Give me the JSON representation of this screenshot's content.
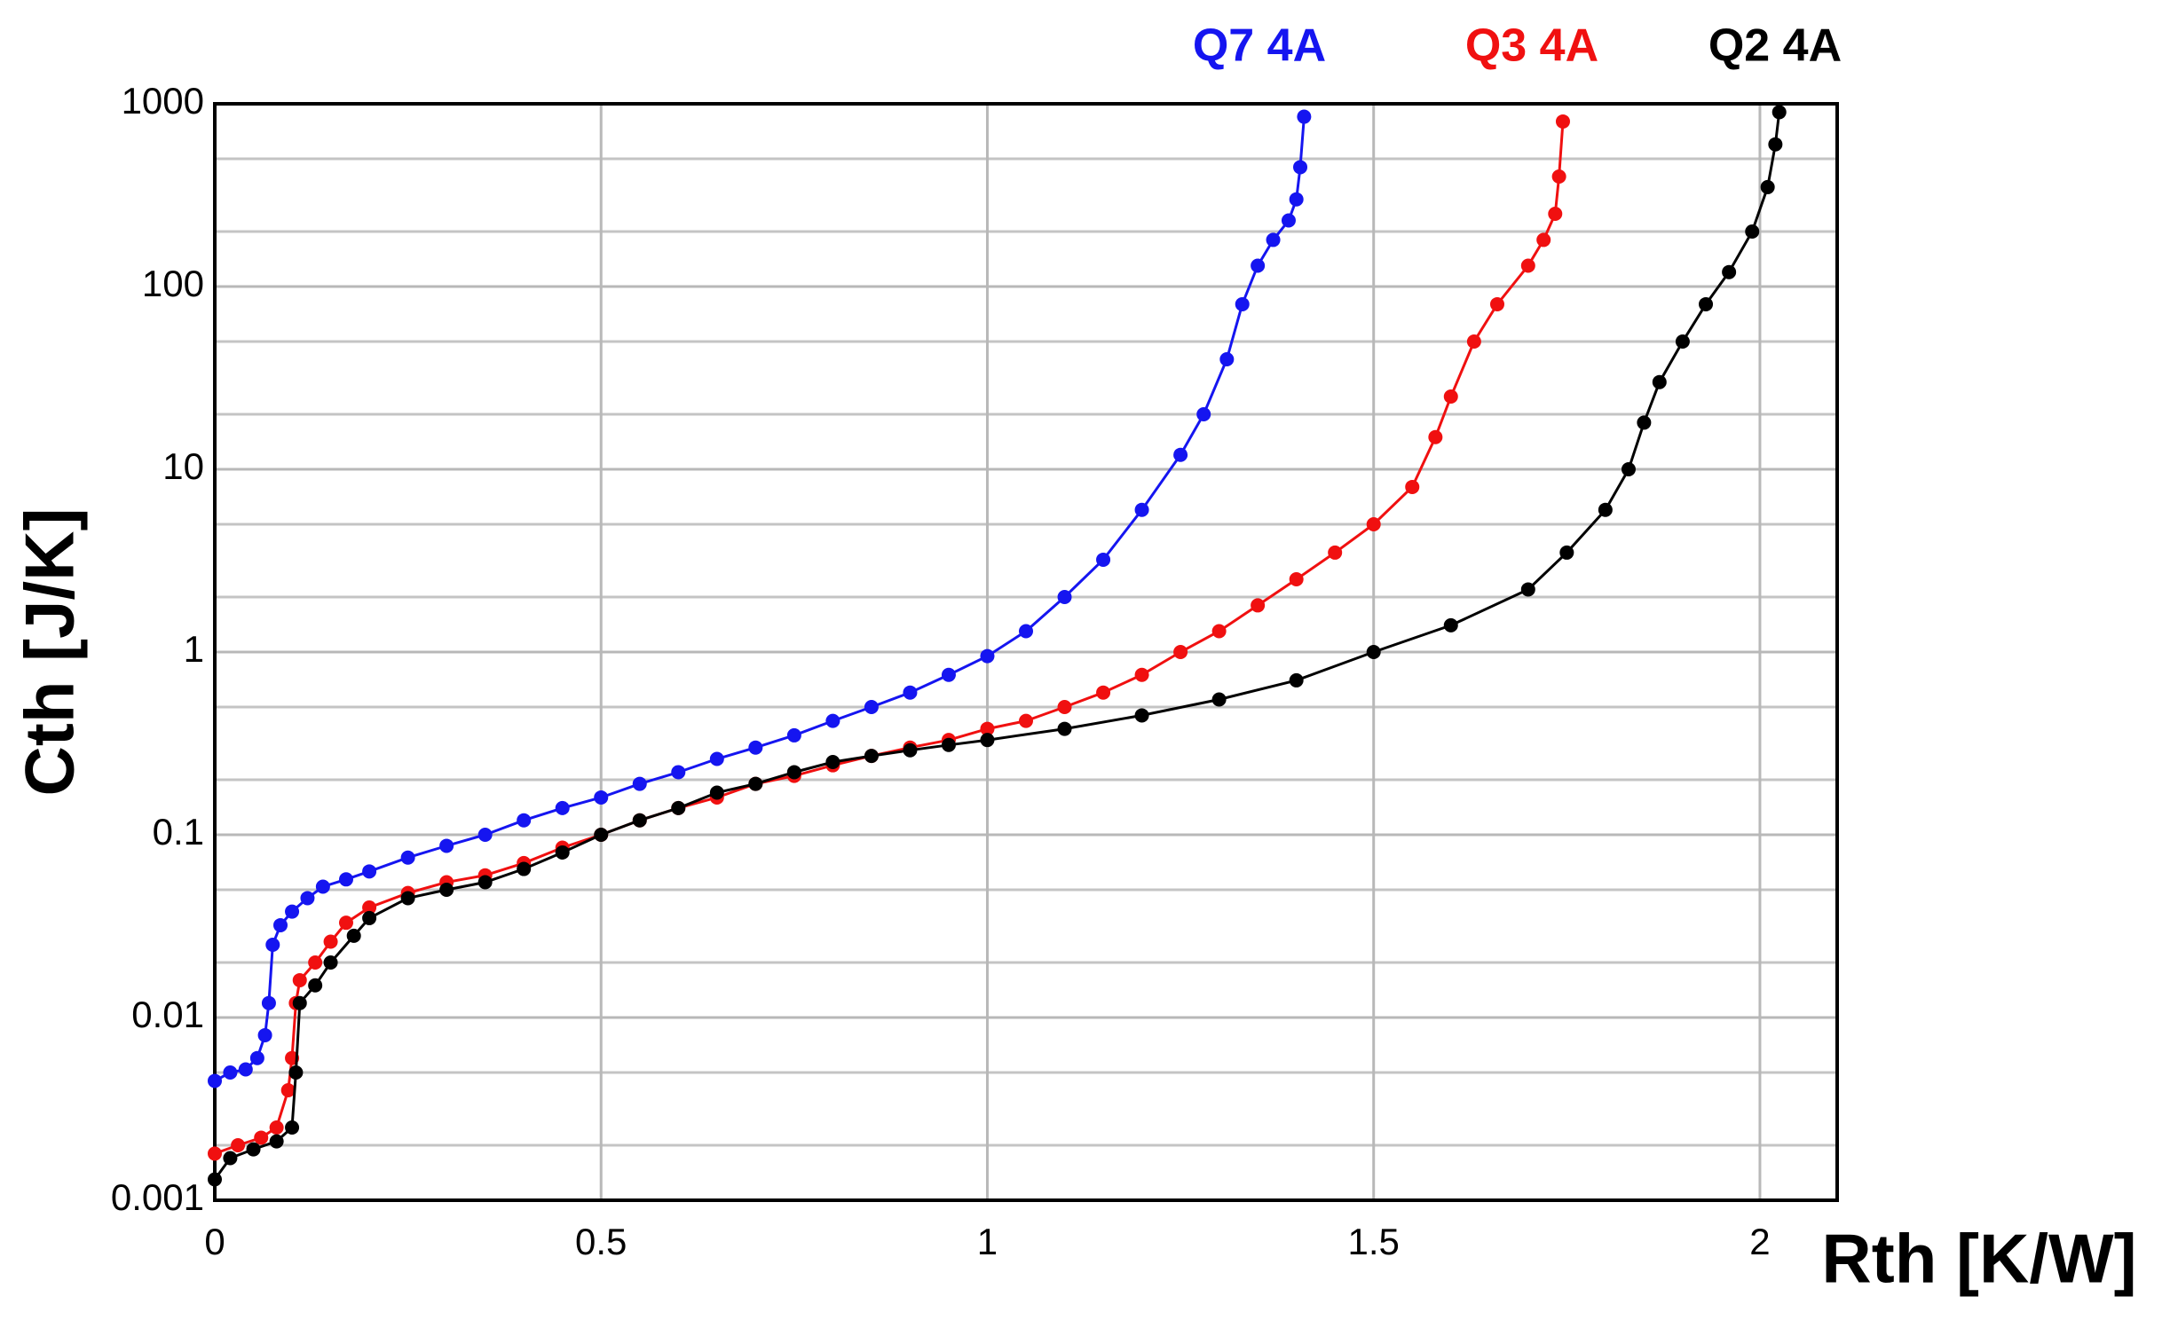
{
  "chart_data": {
    "type": "line",
    "xlabel": "Rth  [K/W]",
    "ylabel": "Cth [J/K]",
    "xlim": [
      0,
      2.1
    ],
    "ylim": [
      0.001,
      1000
    ],
    "ylog": true,
    "grid": true,
    "xticks": [
      0,
      0.5,
      1,
      1.5,
      2
    ],
    "yticks": [
      0.001,
      0.01,
      0.1,
      1,
      10,
      100,
      1000
    ],
    "yminor": [
      0.002,
      0.005,
      0.02,
      0.05,
      0.2,
      0.5,
      2,
      5,
      20,
      50,
      200,
      500
    ],
    "legend": "top",
    "series": [
      {
        "name": "Q7 4A",
        "color": "#1515f0",
        "x": [
          0.0,
          0.02,
          0.04,
          0.055,
          0.065,
          0.07,
          0.075,
          0.085,
          0.1,
          0.12,
          0.14,
          0.17,
          0.2,
          0.25,
          0.3,
          0.35,
          0.4,
          0.45,
          0.5,
          0.55,
          0.6,
          0.65,
          0.7,
          0.75,
          0.8,
          0.85,
          0.9,
          0.95,
          1.0,
          1.05,
          1.1,
          1.15,
          1.2,
          1.25,
          1.28,
          1.31,
          1.33,
          1.35,
          1.37,
          1.39,
          1.4,
          1.405,
          1.41
        ],
        "values": [
          0.0045,
          0.005,
          0.0052,
          0.006,
          0.008,
          0.012,
          0.025,
          0.032,
          0.038,
          0.045,
          0.052,
          0.057,
          0.063,
          0.075,
          0.087,
          0.1,
          0.12,
          0.14,
          0.16,
          0.19,
          0.22,
          0.26,
          0.3,
          0.35,
          0.42,
          0.5,
          0.6,
          0.75,
          0.95,
          1.3,
          2,
          3.2,
          6,
          12,
          20,
          40,
          80,
          130,
          180,
          230,
          300,
          450,
          850
        ]
      },
      {
        "name": "Q3 4A",
        "color": "#f01010",
        "x": [
          0,
          0.03,
          0.06,
          0.08,
          0.095,
          0.1,
          0.105,
          0.11,
          0.13,
          0.15,
          0.17,
          0.2,
          0.25,
          0.3,
          0.35,
          0.4,
          0.45,
          0.5,
          0.55,
          0.6,
          0.65,
          0.7,
          0.75,
          0.8,
          0.85,
          0.9,
          0.95,
          1.0,
          1.05,
          1.1,
          1.15,
          1.2,
          1.25,
          1.3,
          1.35,
          1.4,
          1.45,
          1.5,
          1.55,
          1.58,
          1.6,
          1.63,
          1.66,
          1.7,
          1.72,
          1.735,
          1.74,
          1.745
        ],
        "values": [
          0.0018,
          0.002,
          0.0022,
          0.0025,
          0.004,
          0.006,
          0.012,
          0.016,
          0.02,
          0.026,
          0.033,
          0.04,
          0.048,
          0.055,
          0.06,
          0.07,
          0.085,
          0.1,
          0.12,
          0.14,
          0.16,
          0.19,
          0.21,
          0.24,
          0.27,
          0.3,
          0.33,
          0.38,
          0.42,
          0.5,
          0.6,
          0.75,
          1.0,
          1.3,
          1.8,
          2.5,
          3.5,
          5,
          8,
          15,
          25,
          50,
          80,
          130,
          180,
          250,
          400,
          800
        ]
      },
      {
        "name": "Q2 4A",
        "color": "#000000",
        "x": [
          0,
          0.02,
          0.05,
          0.08,
          0.1,
          0.105,
          0.11,
          0.13,
          0.15,
          0.18,
          0.2,
          0.25,
          0.3,
          0.35,
          0.4,
          0.45,
          0.5,
          0.55,
          0.6,
          0.65,
          0.7,
          0.75,
          0.8,
          0.85,
          0.9,
          0.95,
          1.0,
          1.1,
          1.2,
          1.3,
          1.4,
          1.5,
          1.6,
          1.7,
          1.75,
          1.8,
          1.83,
          1.85,
          1.87,
          1.9,
          1.93,
          1.96,
          1.99,
          2.01,
          2.02,
          2.025
        ],
        "values": [
          0.0013,
          0.0017,
          0.0019,
          0.0021,
          0.0025,
          0.005,
          0.012,
          0.015,
          0.02,
          0.028,
          0.035,
          0.045,
          0.05,
          0.055,
          0.065,
          0.08,
          0.1,
          0.12,
          0.14,
          0.17,
          0.19,
          0.22,
          0.25,
          0.27,
          0.29,
          0.31,
          0.33,
          0.38,
          0.45,
          0.55,
          0.7,
          1.0,
          1.4,
          2.2,
          3.5,
          6,
          10,
          18,
          30,
          50,
          80,
          120,
          200,
          350,
          600,
          900
        ]
      }
    ]
  }
}
